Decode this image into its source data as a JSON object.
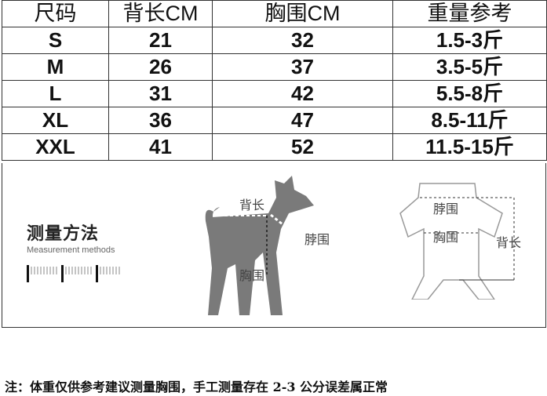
{
  "table": {
    "headers": [
      "尺码",
      "背长CM",
      "胸围CM",
      "重量参考"
    ],
    "rows": [
      [
        "S",
        "21",
        "32",
        "1.5-3斤"
      ],
      [
        "M",
        "26",
        "37",
        "3.5-5斤"
      ],
      [
        "L",
        "31",
        "42",
        "5.5-8斤"
      ],
      [
        "XL",
        "36",
        "47",
        "8.5-11斤"
      ],
      [
        "XXL",
        "41",
        "52",
        "11.5-15斤"
      ]
    ]
  },
  "method": {
    "title": "测量方法",
    "subtitle": "Measurement methods"
  },
  "dog": {
    "back": "背长",
    "neck": "脖围",
    "chest": "胸围"
  },
  "garment": {
    "neck": "脖围",
    "chest": "胸围",
    "back": "背长"
  },
  "note": "注：体重仅供参考建议测量胸围，手工测量存在 2-3 公分误差属正常"
}
